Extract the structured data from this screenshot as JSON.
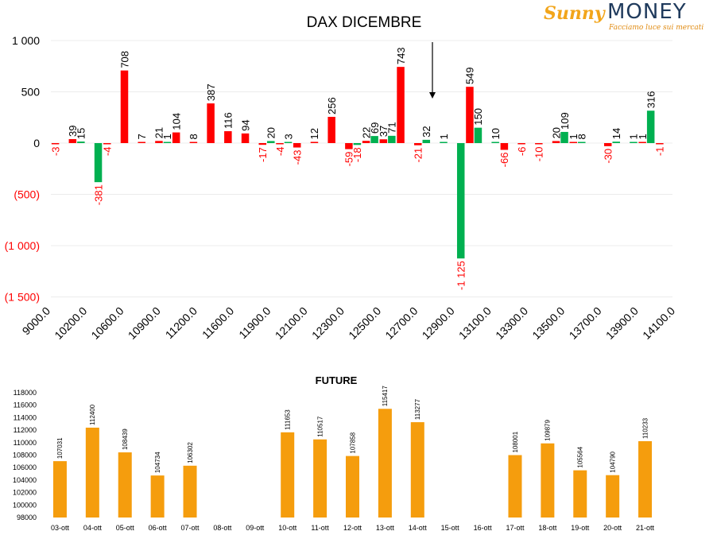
{
  "logo": {
    "brand": "Sunny",
    "name": "MONEY",
    "tagline": "Facciamo luce sui mercati"
  },
  "colors": {
    "positive": "#ff0000",
    "negative": "#00b050",
    "future": "#f59d0d",
    "neg_label": "#ff0000"
  },
  "chart_data": [
    {
      "type": "bar",
      "title": "DAX DICEMBRE",
      "ylim": [
        -1500,
        1000
      ],
      "yticks": [
        1000,
        500,
        0,
        -500,
        -1000,
        -1500
      ],
      "ytick_labels": [
        "1 000",
        "500",
        "0",
        "(500)",
        "(1 000)",
        "(1 500)"
      ],
      "xtick_labels": [
        "9000.0",
        "10200.0",
        "10600.0",
        "10900.0",
        "11200.0",
        "11600.0",
        "11900.0",
        "12100.0",
        "12300.0",
        "12500.0",
        "12700.0",
        "12900.0",
        "13100.0",
        "13300.0",
        "13500.0",
        "13700.0",
        "13900.0",
        "14100.0"
      ],
      "grid": true,
      "annotation": "arrow above 12800",
      "series": [
        {
          "color": "red",
          "values": [
            -3,
            39,
            null,
            -4,
            708,
            7,
            21,
            104,
            8,
            387,
            116,
            94,
            -17,
            -4,
            -43,
            12,
            256,
            -59,
            22,
            37,
            743,
            -21,
            null,
            null,
            549,
            null,
            -66,
            -6,
            -10,
            20,
            1,
            null,
            -30,
            null,
            1,
            -1
          ]
        },
        {
          "color": "green",
          "values": [
            null,
            15,
            -381,
            null,
            null,
            null,
            1,
            null,
            null,
            null,
            null,
            null,
            20,
            3,
            null,
            null,
            null,
            -18,
            69,
            71,
            null,
            32,
            1,
            -1125,
            150,
            10,
            null,
            null,
            null,
            109,
            8,
            null,
            14,
            1,
            316,
            null
          ]
        }
      ]
    },
    {
      "type": "bar",
      "title": "FUTURE",
      "ylim": [
        98000,
        118000
      ],
      "yticks": [
        98000,
        100000,
        102000,
        104000,
        106000,
        108000,
        110000,
        112000,
        114000,
        116000,
        118000
      ],
      "categories": [
        "03-ott",
        "04-ott",
        "05-ott",
        "06-ott",
        "07-ott",
        "08-ott",
        "09-ott",
        "10-ott",
        "11-ott",
        "12-ott",
        "13-ott",
        "14-ott",
        "15-ott",
        "16-ott",
        "17-ott",
        "18-ott",
        "19-ott",
        "20-ott",
        "21-ott"
      ],
      "values": [
        107031,
        112400,
        108439,
        104734,
        106302,
        null,
        null,
        111653,
        110517,
        107858,
        115417,
        113277,
        null,
        null,
        108001,
        109879,
        105564,
        104790,
        110233
      ]
    }
  ]
}
